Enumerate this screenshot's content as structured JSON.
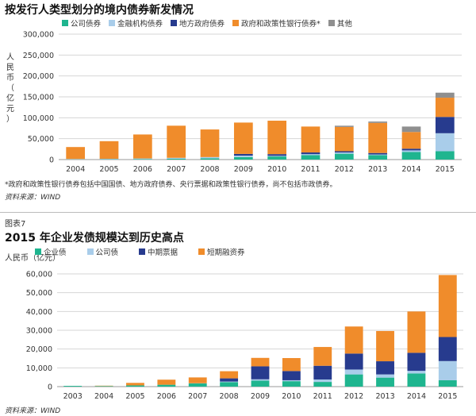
{
  "chart_data": [
    {
      "type": "bar",
      "stacked": true,
      "title": "按发行人类型划分的境内债券新发情况",
      "ylabel": "人民币（亿元）",
      "ylim": [
        0,
        300000
      ],
      "yticks": [
        "0",
        "50,000",
        "100,000",
        "150,000",
        "200,000",
        "250,000",
        "300,000"
      ],
      "grid": true,
      "legend_position": "top",
      "categories": [
        "2004",
        "2005",
        "2006",
        "2007",
        "2008",
        "2009",
        "2010",
        "2011",
        "2012",
        "2013",
        "2014",
        "2015"
      ],
      "series": [
        {
          "name": "公司债券",
          "color": "#1fb58f",
          "values": [
            500,
            700,
            1200,
            1900,
            3000,
            6000,
            7500,
            10500,
            14000,
            10500,
            18000,
            20000
          ]
        },
        {
          "name": "金融机构债券",
          "color": "#a9cdea",
          "values": [
            1000,
            1200,
            1500,
            2300,
            3000,
            3500,
            1500,
            2500,
            3000,
            1700,
            4000,
            43000
          ]
        },
        {
          "name": "地方政府债券",
          "color": "#273b8e",
          "values": [
            0,
            0,
            0,
            0,
            0,
            4000,
            4000,
            4000,
            3000,
            3500,
            4000,
            39000
          ]
        },
        {
          "name": "政府和政策性银行债券*",
          "color": "#f08c2b",
          "values": [
            28500,
            42100,
            57300,
            76800,
            66000,
            75000,
            80000,
            62000,
            58000,
            72000,
            40000,
            46000
          ]
        },
        {
          "name": "其他",
          "color": "#8f8f8f",
          "values": [
            0,
            0,
            0,
            0,
            0,
            0,
            0,
            0,
            3000,
            3300,
            13000,
            12000
          ]
        }
      ],
      "note": "*政府和政策性银行债券包括中国国债、地方政府债券、央行票据和政策性银行债券，尚不包括市政债券。",
      "source": "资料来源：WIND"
    },
    {
      "type": "bar",
      "stacked": true,
      "figure_label": "图表7",
      "title": "2015 年企业发债规模达到历史高点",
      "ylabel": "人民币（亿元）",
      "ylim": [
        0,
        60000
      ],
      "yticks": [
        "0",
        "10,000",
        "20,000",
        "30,000",
        "40,000",
        "50,000",
        "60,000"
      ],
      "grid": true,
      "legend_position": "top",
      "categories": [
        "2003",
        "2004",
        "2005",
        "2006",
        "2007",
        "2008",
        "2009",
        "2010",
        "2011",
        "2012",
        "2013",
        "2014",
        "2015"
      ],
      "series": [
        {
          "name": "企业债",
          "color": "#1fb58f",
          "values": [
            400,
            300,
            650,
            1000,
            1700,
            2400,
            3200,
            2900,
            2500,
            6500,
            4800,
            7000,
            3400
          ]
        },
        {
          "name": "公司债",
          "color": "#a9cdea",
          "values": [
            0,
            0,
            0,
            0,
            100,
            300,
            700,
            500,
            1300,
            2600,
            1700,
            1400,
            10200
          ]
        },
        {
          "name": "中期票据",
          "color": "#273b8e",
          "values": [
            0,
            0,
            0,
            0,
            0,
            1700,
            6900,
            4900,
            7300,
            8500,
            7000,
            9600,
            12800
          ]
        },
        {
          "name": "短期融资券",
          "color": "#f08c2b",
          "values": [
            0,
            200,
            1350,
            2700,
            3100,
            3800,
            4500,
            6900,
            10000,
            14400,
            16100,
            22000,
            33000
          ]
        }
      ],
      "source": "资料来源：WIND"
    }
  ]
}
